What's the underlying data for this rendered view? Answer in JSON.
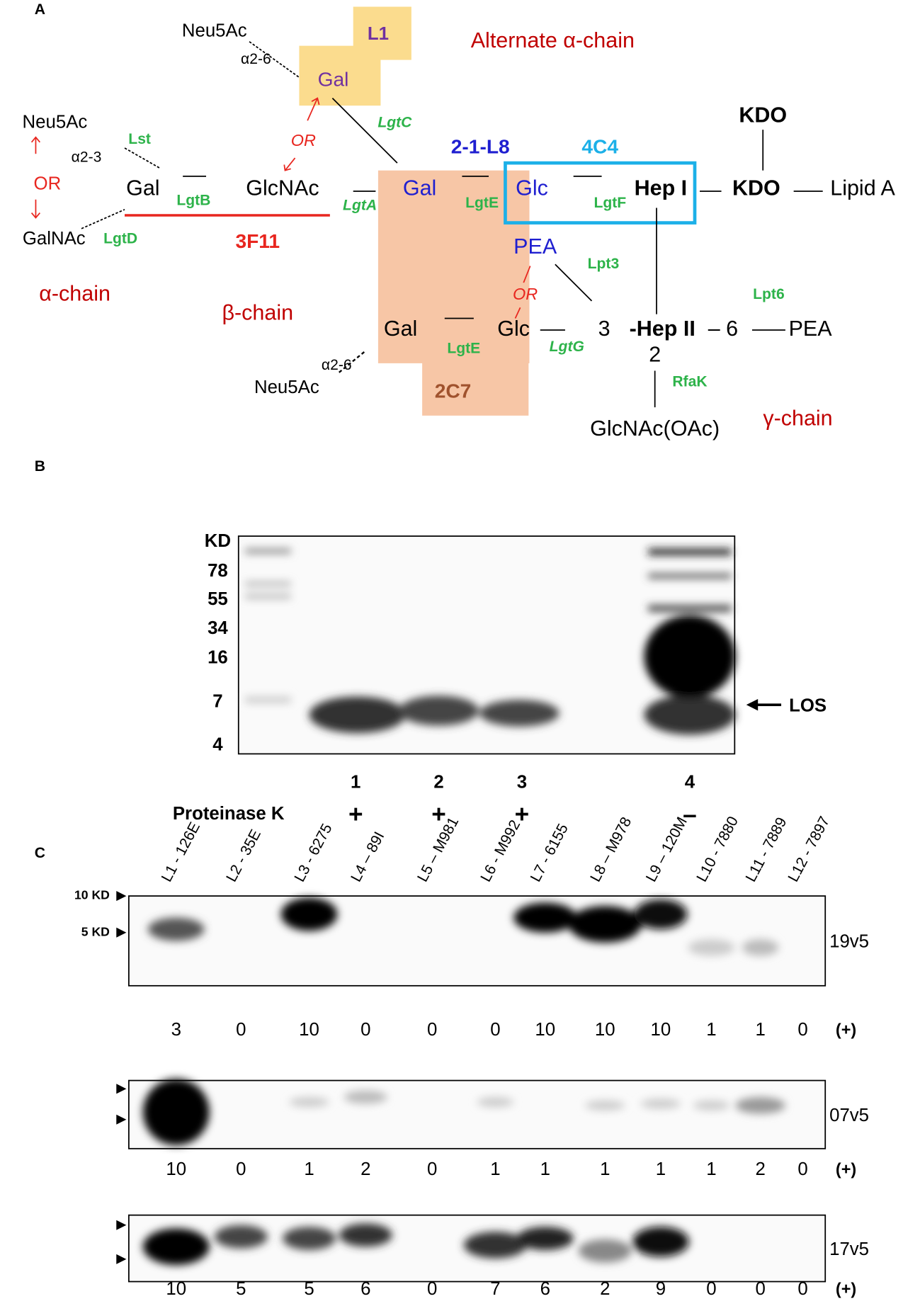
{
  "panel_a": {
    "labels": [
      "A",
      "Neu5Ac",
      "α2-6",
      "L1",
      "Gal",
      "Alternate α-chain",
      "LgtC",
      "Neu5Ac",
      "α2-3",
      "Lst",
      "OR",
      "GalNAc",
      "LgtD",
      "Gal",
      "LgtB",
      "GlcNAc",
      "LgtA",
      "3F11",
      "α-chain",
      "OR",
      "2-1-L8",
      "4C4",
      "KDO",
      "Gal",
      "LgtE",
      "Glc",
      "LgtF",
      "Hep I",
      "KDO",
      "Lipid A",
      "PEA",
      "Lpt3",
      "OR",
      "β-chain",
      "Gal",
      "LgtE",
      "Glc",
      "LgtG",
      "3",
      "-Hep II",
      "– 6",
      "PEA",
      "Lpt6",
      "2",
      "RfaK",
      "GlcNAc(OAc)",
      "γ-chain",
      "α2-6",
      "Neu5Ac",
      "2C7"
    ]
  },
  "panel_b": {
    "label": "B",
    "ladder_title": "KD",
    "ladder": [
      78,
      55,
      34,
      16,
      7,
      4
    ],
    "band_label": "LOS",
    "lanes": [
      1,
      2,
      3,
      4
    ],
    "treatment": "Proteinase K",
    "signs": [
      "+",
      "+",
      "+",
      "–"
    ]
  },
  "panel_c": {
    "label": "C",
    "strains": [
      "L1 - 126E",
      "L2 - 35E",
      "L3 - 6275",
      "L4 – 89I",
      "L5 – M981",
      "L6 - M992",
      "L7 - 6155",
      "L8 – M978",
      "L9 – 120M",
      "L10 - 7880",
      "L11 - 7889",
      "L12 - 7897"
    ],
    "markers": [
      "10 KD",
      "5 KD"
    ],
    "score_unit": "(+)",
    "blots": [
      {
        "name": "19v5",
        "scores": [
          3,
          0,
          10,
          0,
          0,
          0,
          10,
          10,
          10,
          1,
          1,
          0
        ]
      },
      {
        "name": "07v5",
        "scores": [
          10,
          0,
          1,
          2,
          0,
          1,
          1,
          1,
          1,
          1,
          2,
          0
        ]
      },
      {
        "name": "17v5",
        "scores": [
          10,
          5,
          5,
          6,
          0,
          7,
          6,
          2,
          9,
          0,
          0,
          0
        ]
      }
    ]
  }
}
